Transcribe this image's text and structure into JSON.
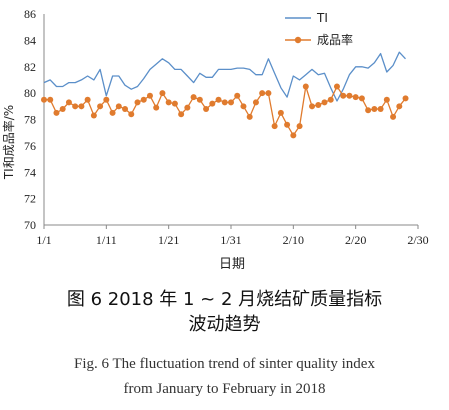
{
  "chart_data": {
    "type": "line",
    "xlabel": "日期",
    "ylabel": "TI和成品率/%",
    "ylim": [
      70,
      86
    ],
    "yticks": [
      "70",
      "72",
      "74",
      "76",
      "78",
      "80",
      "82",
      "84",
      "86"
    ],
    "xticks": [
      "1/1",
      "1/11",
      "1/21",
      "1/31",
      "2/10",
      "2/20",
      "2/30"
    ],
    "grid": false,
    "legend": "top-right",
    "colors": {
      "ti": "#5b8fc9",
      "yield": "#e07b2e"
    },
    "series": [
      {
        "name": "TI",
        "marker": "none",
        "x": [
          1,
          2,
          3,
          4,
          5,
          6,
          7,
          8,
          9,
          10,
          11,
          12,
          13,
          14,
          15,
          16,
          17,
          18,
          19,
          20,
          21,
          22,
          23,
          24,
          25,
          26,
          27,
          28,
          29,
          30,
          31,
          32,
          33,
          34,
          35,
          36,
          37,
          38,
          39,
          40,
          41,
          42,
          43,
          44,
          45,
          46,
          47,
          48,
          49,
          50,
          51,
          52,
          53,
          54,
          55,
          56,
          57,
          58,
          59
        ],
        "values": [
          80.8,
          81.0,
          80.5,
          80.5,
          80.8,
          80.8,
          81.0,
          81.3,
          81.0,
          81.8,
          79.8,
          81.3,
          81.3,
          80.6,
          80.3,
          80.5,
          81.1,
          81.8,
          82.2,
          82.6,
          82.3,
          81.8,
          81.8,
          81.3,
          80.8,
          81.5,
          81.2,
          81.2,
          81.8,
          81.8,
          81.8,
          81.9,
          81.9,
          81.8,
          81.4,
          81.4,
          82.6,
          81.5,
          80.4,
          79.7,
          81.3,
          81.0,
          81.4,
          81.8,
          81.4,
          81.5,
          80.4,
          79.4,
          80.3,
          81.4,
          82.0,
          82.0,
          81.9,
          82.3,
          83.0,
          81.6,
          82.1,
          83.1,
          82.6
        ]
      },
      {
        "name": "成品率",
        "marker": "circle",
        "x": [
          1,
          2,
          3,
          4,
          5,
          6,
          7,
          8,
          9,
          10,
          11,
          12,
          13,
          14,
          15,
          16,
          17,
          18,
          19,
          20,
          21,
          22,
          23,
          24,
          25,
          26,
          27,
          28,
          29,
          30,
          31,
          32,
          33,
          34,
          35,
          36,
          37,
          38,
          39,
          40,
          41,
          42,
          43,
          44,
          45,
          46,
          47,
          48,
          49,
          50,
          51,
          52,
          53,
          54,
          55,
          56,
          57,
          58,
          59
        ],
        "values": [
          79.5,
          79.5,
          78.5,
          78.8,
          79.3,
          79.0,
          79.0,
          79.5,
          78.3,
          79.0,
          79.5,
          78.5,
          79.0,
          78.8,
          78.4,
          79.3,
          79.5,
          79.8,
          78.9,
          80.0,
          79.3,
          79.2,
          78.4,
          78.9,
          79.7,
          79.5,
          78.8,
          79.2,
          79.5,
          79.3,
          79.3,
          79.8,
          79.0,
          78.2,
          79.3,
          80.0,
          80.0,
          77.5,
          78.5,
          77.6,
          76.8,
          77.5,
          80.5,
          79.0,
          79.1,
          79.3,
          79.5,
          80.5,
          79.8,
          79.8,
          79.7,
          79.6,
          78.7,
          78.8,
          78.8,
          79.5,
          78.2,
          79.0,
          79.6
        ]
      }
    ]
  },
  "caption": {
    "cn_line1": "图 6 2018 年 1 ~ 2 月烧结矿质量指标",
    "cn_line2": "波动趋势",
    "en_line1": "Fig. 6 The fluctuation trend of sinter quality index",
    "en_line2": "from January to February in 2018"
  }
}
